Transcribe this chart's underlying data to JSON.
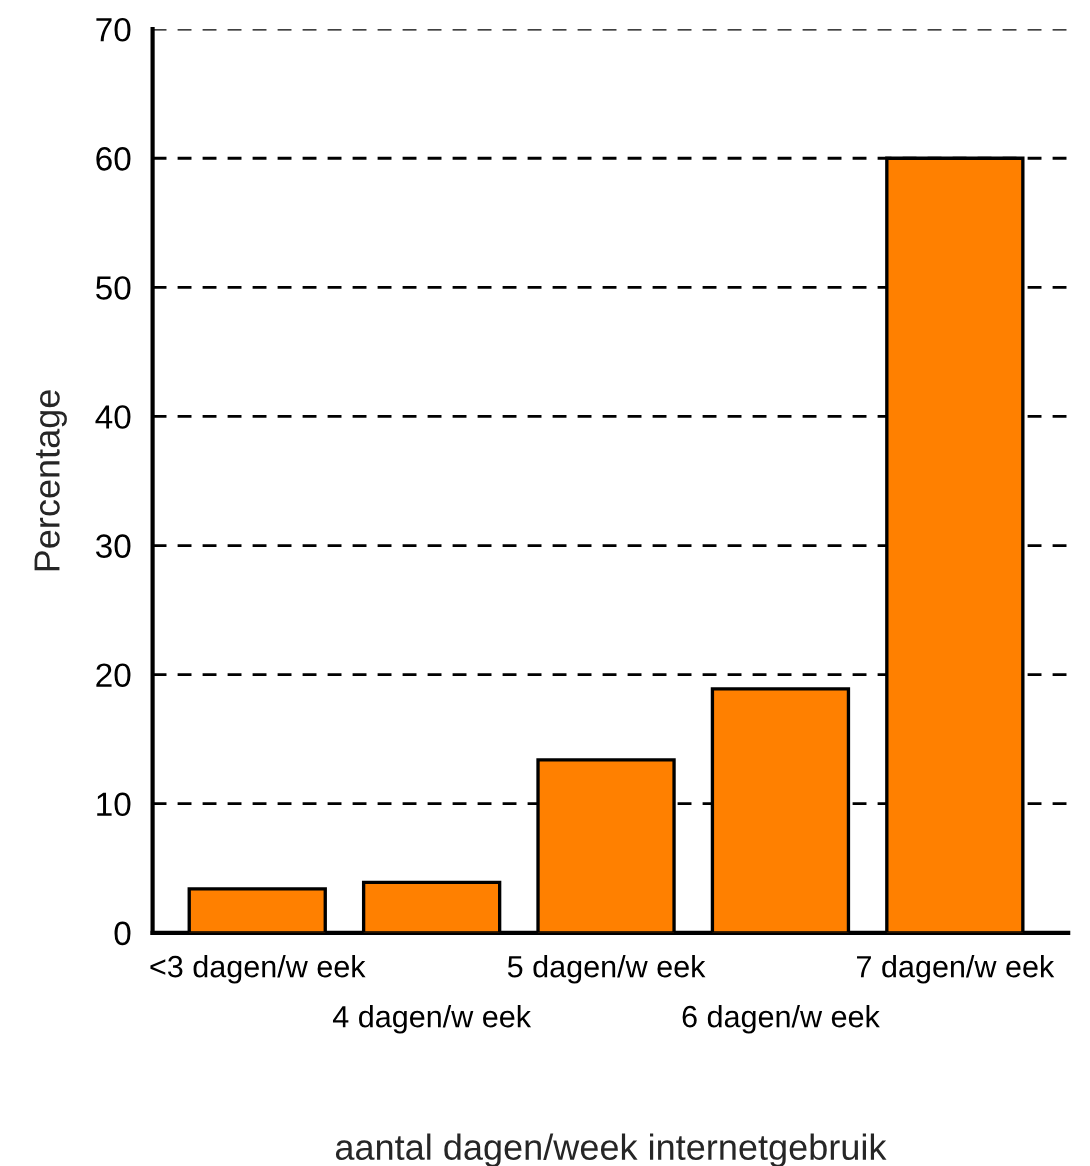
{
  "chart_data": {
    "type": "bar",
    "xlabel": "aantal dagen/week internetgebruik",
    "ylabel": "Percentage",
    "categories": [
      "<3 dagen/w eek",
      "4 dagen/w eek",
      "5 dagen/w eek",
      "6 dagen/w eek",
      "7 dagen/w eek"
    ],
    "values": [
      3.4,
      3.9,
      13.4,
      18.9,
      60
    ],
    "color": "#ff8000",
    "ylim": [
      0,
      70
    ],
    "yticks": [
      0,
      10,
      20,
      30,
      40,
      50,
      60,
      70
    ],
    "grid": "y",
    "line_style": "dashed"
  }
}
